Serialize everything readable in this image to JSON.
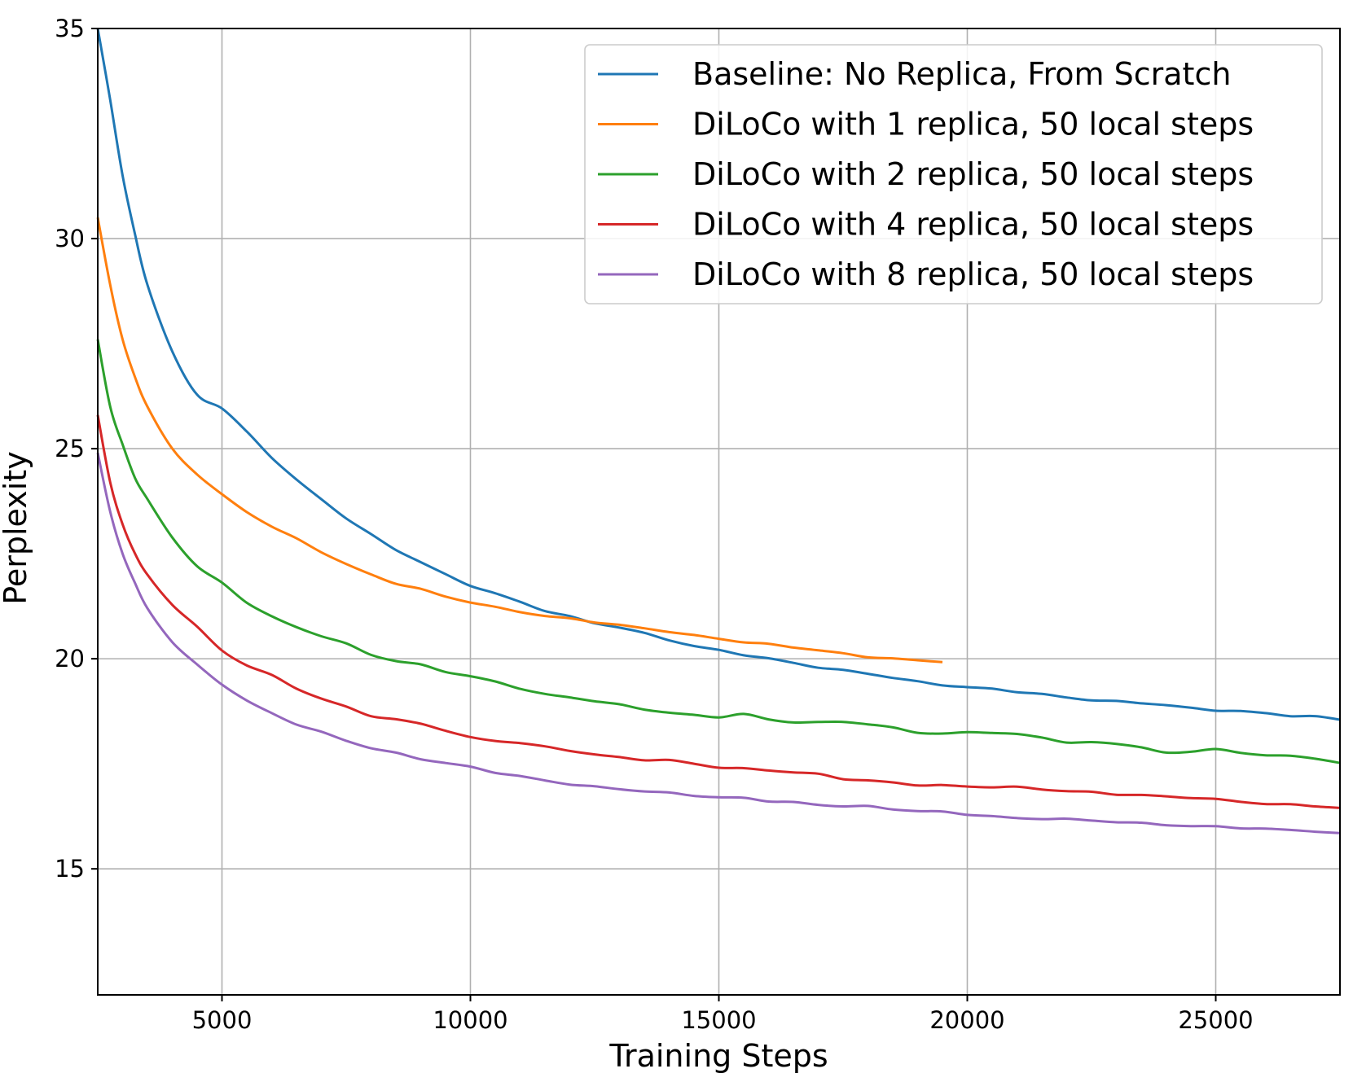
{
  "chart_data": {
    "type": "line",
    "title": "",
    "xlabel": "Training Steps",
    "ylabel": "Perplexity",
    "xlim": [
      2500,
      27500
    ],
    "ylim": [
      12,
      35
    ],
    "xticks": [
      5000,
      10000,
      15000,
      20000,
      25000
    ],
    "yticks": [
      15,
      20,
      25,
      30,
      35
    ],
    "xtick_labels": [
      "5000",
      "10000",
      "15000",
      "20000",
      "25000"
    ],
    "ytick_labels": [
      "15",
      "20",
      "25",
      "30",
      "35"
    ],
    "grid": true,
    "legend_position": "top-right",
    "series": [
      {
        "name": "Baseline: No Replica, From Scratch",
        "color": "#1f77b4",
        "x": [
          2500,
          2750,
          3000,
          3250,
          3500,
          4000,
          4500,
          5000,
          5500,
          6000,
          6500,
          7000,
          7500,
          8000,
          8500,
          9000,
          9500,
          10000,
          10500,
          11000,
          11500,
          12000,
          12500,
          13000,
          13500,
          14000,
          14500,
          15000,
          15500,
          16000,
          16500,
          17000,
          17500,
          18000,
          18500,
          19000,
          19500,
          20000,
          20500,
          21000,
          21500,
          22000,
          22500,
          23000,
          23500,
          24000,
          24500,
          25000,
          25500,
          26000,
          26500,
          27000,
          27500
        ],
        "values": [
          35.5,
          33.3,
          31.5,
          30.1,
          28.9,
          27.3,
          26.3,
          25.95,
          25.4,
          24.8,
          24.25,
          23.8,
          23.35,
          22.95,
          22.6,
          22.3,
          22.0,
          21.75,
          21.55,
          21.35,
          21.15,
          21.0,
          20.85,
          20.75,
          20.6,
          20.45,
          20.3,
          20.2,
          20.1,
          20.0,
          19.9,
          19.8,
          19.72,
          19.65,
          19.55,
          19.45,
          19.38,
          19.32,
          19.28,
          19.22,
          19.15,
          19.08,
          19.02,
          18.98,
          18.95,
          18.9,
          18.82,
          18.78,
          18.75,
          18.7,
          18.65,
          18.62,
          18.55
        ]
      },
      {
        "name": "DiLoCo with 1 replica, 50 local steps",
        "color": "#ff7f0e",
        "x": [
          2500,
          2750,
          3000,
          3250,
          3500,
          4000,
          4500,
          5000,
          5500,
          6000,
          6500,
          7000,
          7500,
          8000,
          8500,
          9000,
          9500,
          10000,
          10500,
          11000,
          11500,
          12000,
          12500,
          13000,
          13500,
          14000,
          14500,
          15000,
          15500,
          16000,
          16500,
          17000,
          17500,
          18000,
          18500,
          19000,
          19500
        ],
        "values": [
          30.5,
          28.9,
          27.6,
          26.7,
          26.0,
          25.0,
          24.4,
          23.9,
          23.5,
          23.15,
          22.85,
          22.55,
          22.25,
          22.0,
          21.8,
          21.65,
          21.48,
          21.35,
          21.22,
          21.12,
          21.02,
          20.95,
          20.88,
          20.8,
          20.72,
          20.65,
          20.55,
          20.48,
          20.4,
          20.34,
          20.28,
          20.2,
          20.12,
          20.05,
          20.0,
          19.96,
          19.92
        ]
      },
      {
        "name": "DiLoCo with 2 replica, 50 local steps",
        "color": "#2ca02c",
        "x": [
          2500,
          2750,
          3000,
          3250,
          3500,
          4000,
          4500,
          5000,
          5500,
          6000,
          6500,
          7000,
          7500,
          8000,
          8500,
          9000,
          9500,
          10000,
          10500,
          11000,
          11500,
          12000,
          12500,
          13000,
          13500,
          14000,
          14500,
          15000,
          15500,
          16000,
          16500,
          17000,
          17500,
          18000,
          18500,
          19000,
          19500,
          20000,
          20500,
          21000,
          21500,
          22000,
          22500,
          23000,
          23500,
          24000,
          24500,
          25000,
          25500,
          26000,
          26500,
          27000,
          27500
        ],
        "values": [
          27.6,
          26.0,
          25.1,
          24.3,
          23.8,
          22.9,
          22.2,
          21.8,
          21.35,
          21.0,
          20.75,
          20.55,
          20.35,
          20.1,
          19.95,
          19.85,
          19.7,
          19.58,
          19.45,
          19.3,
          19.15,
          19.08,
          19.0,
          18.9,
          18.8,
          18.72,
          18.65,
          18.62,
          18.68,
          18.55,
          18.5,
          18.48,
          18.5,
          18.45,
          18.35,
          18.25,
          18.22,
          18.24,
          18.25,
          18.2,
          18.12,
          18.02,
          18.0,
          17.98,
          17.9,
          17.75,
          17.8,
          17.85,
          17.75,
          17.72,
          17.68,
          17.62,
          17.52
        ]
      },
      {
        "name": "DiLoCo with 4 replica, 50 local steps",
        "color": "#d62728",
        "x": [
          2500,
          2750,
          3000,
          3250,
          3500,
          4000,
          4500,
          5000,
          5500,
          6000,
          6500,
          7000,
          7500,
          8000,
          8500,
          9000,
          9500,
          10000,
          10500,
          11000,
          11500,
          12000,
          12500,
          13000,
          13500,
          14000,
          14500,
          15000,
          15500,
          16000,
          16500,
          17000,
          17500,
          18000,
          18500,
          19000,
          19500,
          20000,
          20500,
          21000,
          21500,
          22000,
          22500,
          23000,
          23500,
          24000,
          24500,
          25000,
          25500,
          26000,
          26500,
          27000,
          27500
        ],
        "values": [
          25.8,
          24.2,
          23.2,
          22.5,
          22.0,
          21.3,
          20.75,
          20.2,
          19.85,
          19.6,
          19.3,
          19.05,
          18.85,
          18.65,
          18.55,
          18.45,
          18.3,
          18.12,
          18.05,
          18.0,
          17.9,
          17.82,
          17.72,
          17.65,
          17.6,
          17.58,
          17.5,
          17.42,
          17.38,
          17.35,
          17.3,
          17.25,
          17.15,
          17.1,
          17.05,
          17.0,
          16.98,
          16.96,
          16.95,
          16.94,
          16.9,
          16.85,
          16.82,
          16.78,
          16.75,
          16.72,
          16.7,
          16.65,
          16.6,
          16.55,
          16.52,
          16.5,
          16.45
        ]
      },
      {
        "name": "DiLoCo with 8 replica, 50 local steps",
        "color": "#9467bd",
        "x": [
          2500,
          2750,
          3000,
          3250,
          3500,
          4000,
          4500,
          5000,
          5500,
          6000,
          6500,
          7000,
          7500,
          8000,
          8500,
          9000,
          9500,
          10000,
          10500,
          11000,
          11500,
          12000,
          12500,
          13000,
          13500,
          14000,
          14500,
          15000,
          15500,
          16000,
          16500,
          17000,
          17500,
          18000,
          18500,
          19000,
          19500,
          20000,
          20500,
          21000,
          21500,
          22000,
          22500,
          23000,
          23500,
          24000,
          24500,
          25000,
          25500,
          26000,
          26500,
          27000,
          27500
        ],
        "values": [
          24.9,
          23.5,
          22.5,
          21.8,
          21.2,
          20.4,
          19.85,
          19.4,
          19.0,
          18.7,
          18.45,
          18.25,
          18.05,
          17.88,
          17.75,
          17.62,
          17.52,
          17.42,
          17.3,
          17.2,
          17.1,
          17.02,
          16.95,
          16.9,
          16.85,
          16.8,
          16.75,
          16.7,
          16.68,
          16.62,
          16.58,
          16.52,
          16.5,
          16.48,
          16.42,
          16.38,
          16.35,
          16.3,
          16.25,
          16.2,
          16.2,
          16.18,
          16.15,
          16.12,
          16.08,
          16.05,
          16.02,
          16.0,
          15.98,
          15.95,
          15.92,
          15.9,
          15.85
        ]
      }
    ]
  }
}
